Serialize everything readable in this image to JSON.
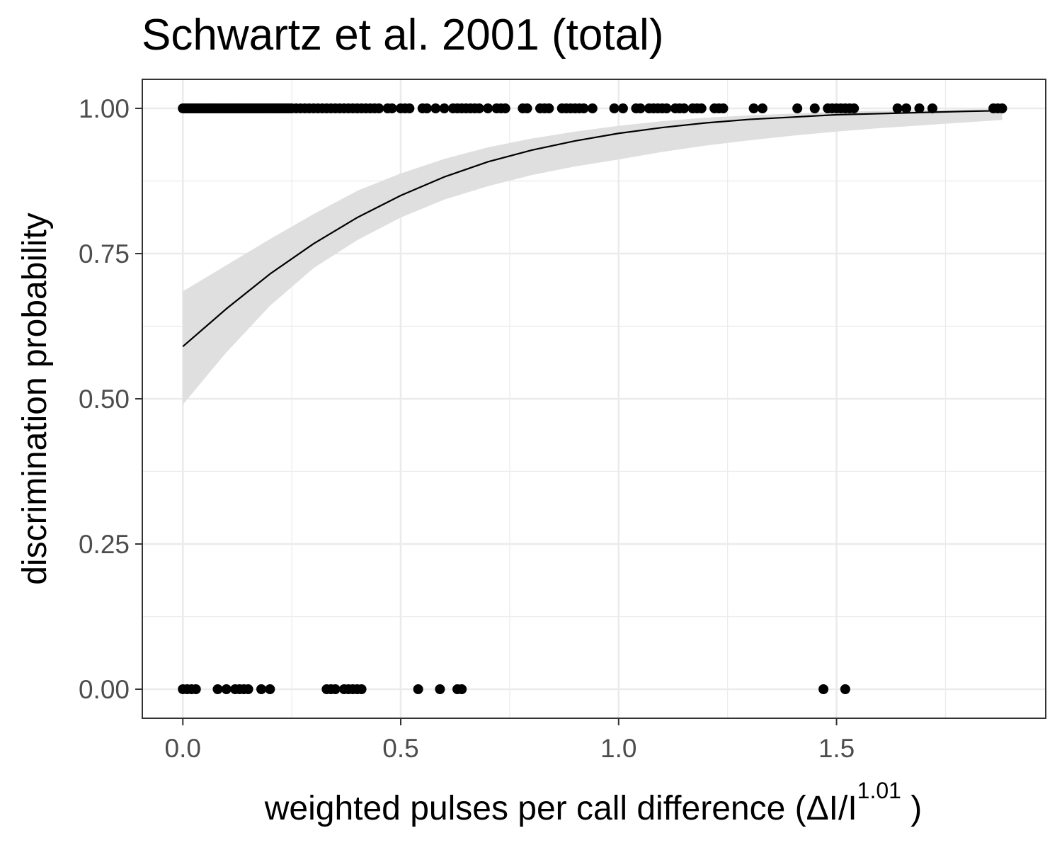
{
  "chart_data": {
    "type": "scatter",
    "title": "Schwartz et al. 2001 (total)",
    "xlabel_parts": {
      "main": "weighted  pulses per call  difference (ΔI/I",
      "sup": "1.01",
      "close": " )"
    },
    "ylabel": "discrimination probability",
    "xlim": [
      -0.093,
      1.98
    ],
    "ylim": [
      -0.05,
      1.05
    ],
    "x_ticks": [
      0.0,
      0.5,
      1.0,
      1.5
    ],
    "x_tick_labels": [
      "0.0",
      "0.5",
      "1.0",
      "1.5"
    ],
    "y_ticks": [
      0.0,
      0.25,
      0.5,
      0.75,
      1.0
    ],
    "y_tick_labels": [
      "0.00",
      "0.25",
      "0.50",
      "0.75",
      "1.00"
    ],
    "grid": true,
    "legend": "none",
    "series": [
      {
        "kind": "points",
        "color": "#000000",
        "y1_x": [
          0.0,
          0.005,
          0.01,
          0.015,
          0.02,
          0.025,
          0.03,
          0.035,
          0.04,
          0.045,
          0.05,
          0.055,
          0.06,
          0.065,
          0.07,
          0.075,
          0.08,
          0.085,
          0.09,
          0.095,
          0.1,
          0.105,
          0.11,
          0.115,
          0.12,
          0.125,
          0.13,
          0.135,
          0.14,
          0.145,
          0.15,
          0.155,
          0.16,
          0.165,
          0.17,
          0.175,
          0.18,
          0.185,
          0.19,
          0.195,
          0.2,
          0.205,
          0.21,
          0.215,
          0.22,
          0.225,
          0.23,
          0.235,
          0.24,
          0.245,
          0.25,
          0.26,
          0.27,
          0.28,
          0.29,
          0.3,
          0.31,
          0.32,
          0.33,
          0.34,
          0.35,
          0.36,
          0.37,
          0.38,
          0.39,
          0.4,
          0.41,
          0.42,
          0.43,
          0.44,
          0.45,
          0.47,
          0.48,
          0.5,
          0.51,
          0.52,
          0.55,
          0.56,
          0.58,
          0.6,
          0.62,
          0.63,
          0.64,
          0.65,
          0.66,
          0.67,
          0.68,
          0.7,
          0.72,
          0.73,
          0.74,
          0.78,
          0.79,
          0.82,
          0.83,
          0.84,
          0.87,
          0.88,
          0.89,
          0.9,
          0.91,
          0.92,
          0.94,
          0.99,
          1.01,
          1.04,
          1.05,
          1.07,
          1.08,
          1.09,
          1.1,
          1.11,
          1.13,
          1.14,
          1.15,
          1.17,
          1.18,
          1.19,
          1.22,
          1.23,
          1.24,
          1.31,
          1.33,
          1.41,
          1.45,
          1.48,
          1.49,
          1.5,
          1.51,
          1.52,
          1.53,
          1.54,
          1.64,
          1.66,
          1.69,
          1.72,
          1.86,
          1.87,
          1.88
        ],
        "y0_x": [
          0.0,
          0.01,
          0.02,
          0.03,
          0.08,
          0.1,
          0.12,
          0.13,
          0.14,
          0.15,
          0.18,
          0.2,
          0.33,
          0.34,
          0.35,
          0.37,
          0.38,
          0.39,
          0.4,
          0.41,
          0.54,
          0.59,
          0.63,
          0.64,
          1.47,
          1.52
        ]
      },
      {
        "kind": "fit",
        "color": "#000000",
        "ribbon_color": "#dfdfdf",
        "x": [
          0.0,
          0.1,
          0.2,
          0.3,
          0.4,
          0.5,
          0.6,
          0.7,
          0.8,
          0.9,
          1.0,
          1.1,
          1.2,
          1.3,
          1.4,
          1.5,
          1.6,
          1.7,
          1.8,
          1.88
        ],
        "fit": [
          0.59,
          0.655,
          0.715,
          0.767,
          0.812,
          0.85,
          0.882,
          0.908,
          0.928,
          0.944,
          0.957,
          0.967,
          0.975,
          0.981,
          0.985,
          0.989,
          0.991,
          0.993,
          0.995,
          0.996
        ],
        "lower": [
          0.49,
          0.58,
          0.66,
          0.725,
          0.773,
          0.812,
          0.843,
          0.866,
          0.885,
          0.9,
          0.912,
          0.925,
          0.936,
          0.945,
          0.953,
          0.96,
          0.966,
          0.971,
          0.976,
          0.98
        ],
        "upper": [
          0.685,
          0.73,
          0.775,
          0.818,
          0.858,
          0.888,
          0.913,
          0.933,
          0.948,
          0.96,
          0.97,
          0.978,
          0.984,
          0.988,
          0.991,
          0.994,
          0.996,
          0.997,
          0.998,
          0.999
        ]
      }
    ]
  }
}
